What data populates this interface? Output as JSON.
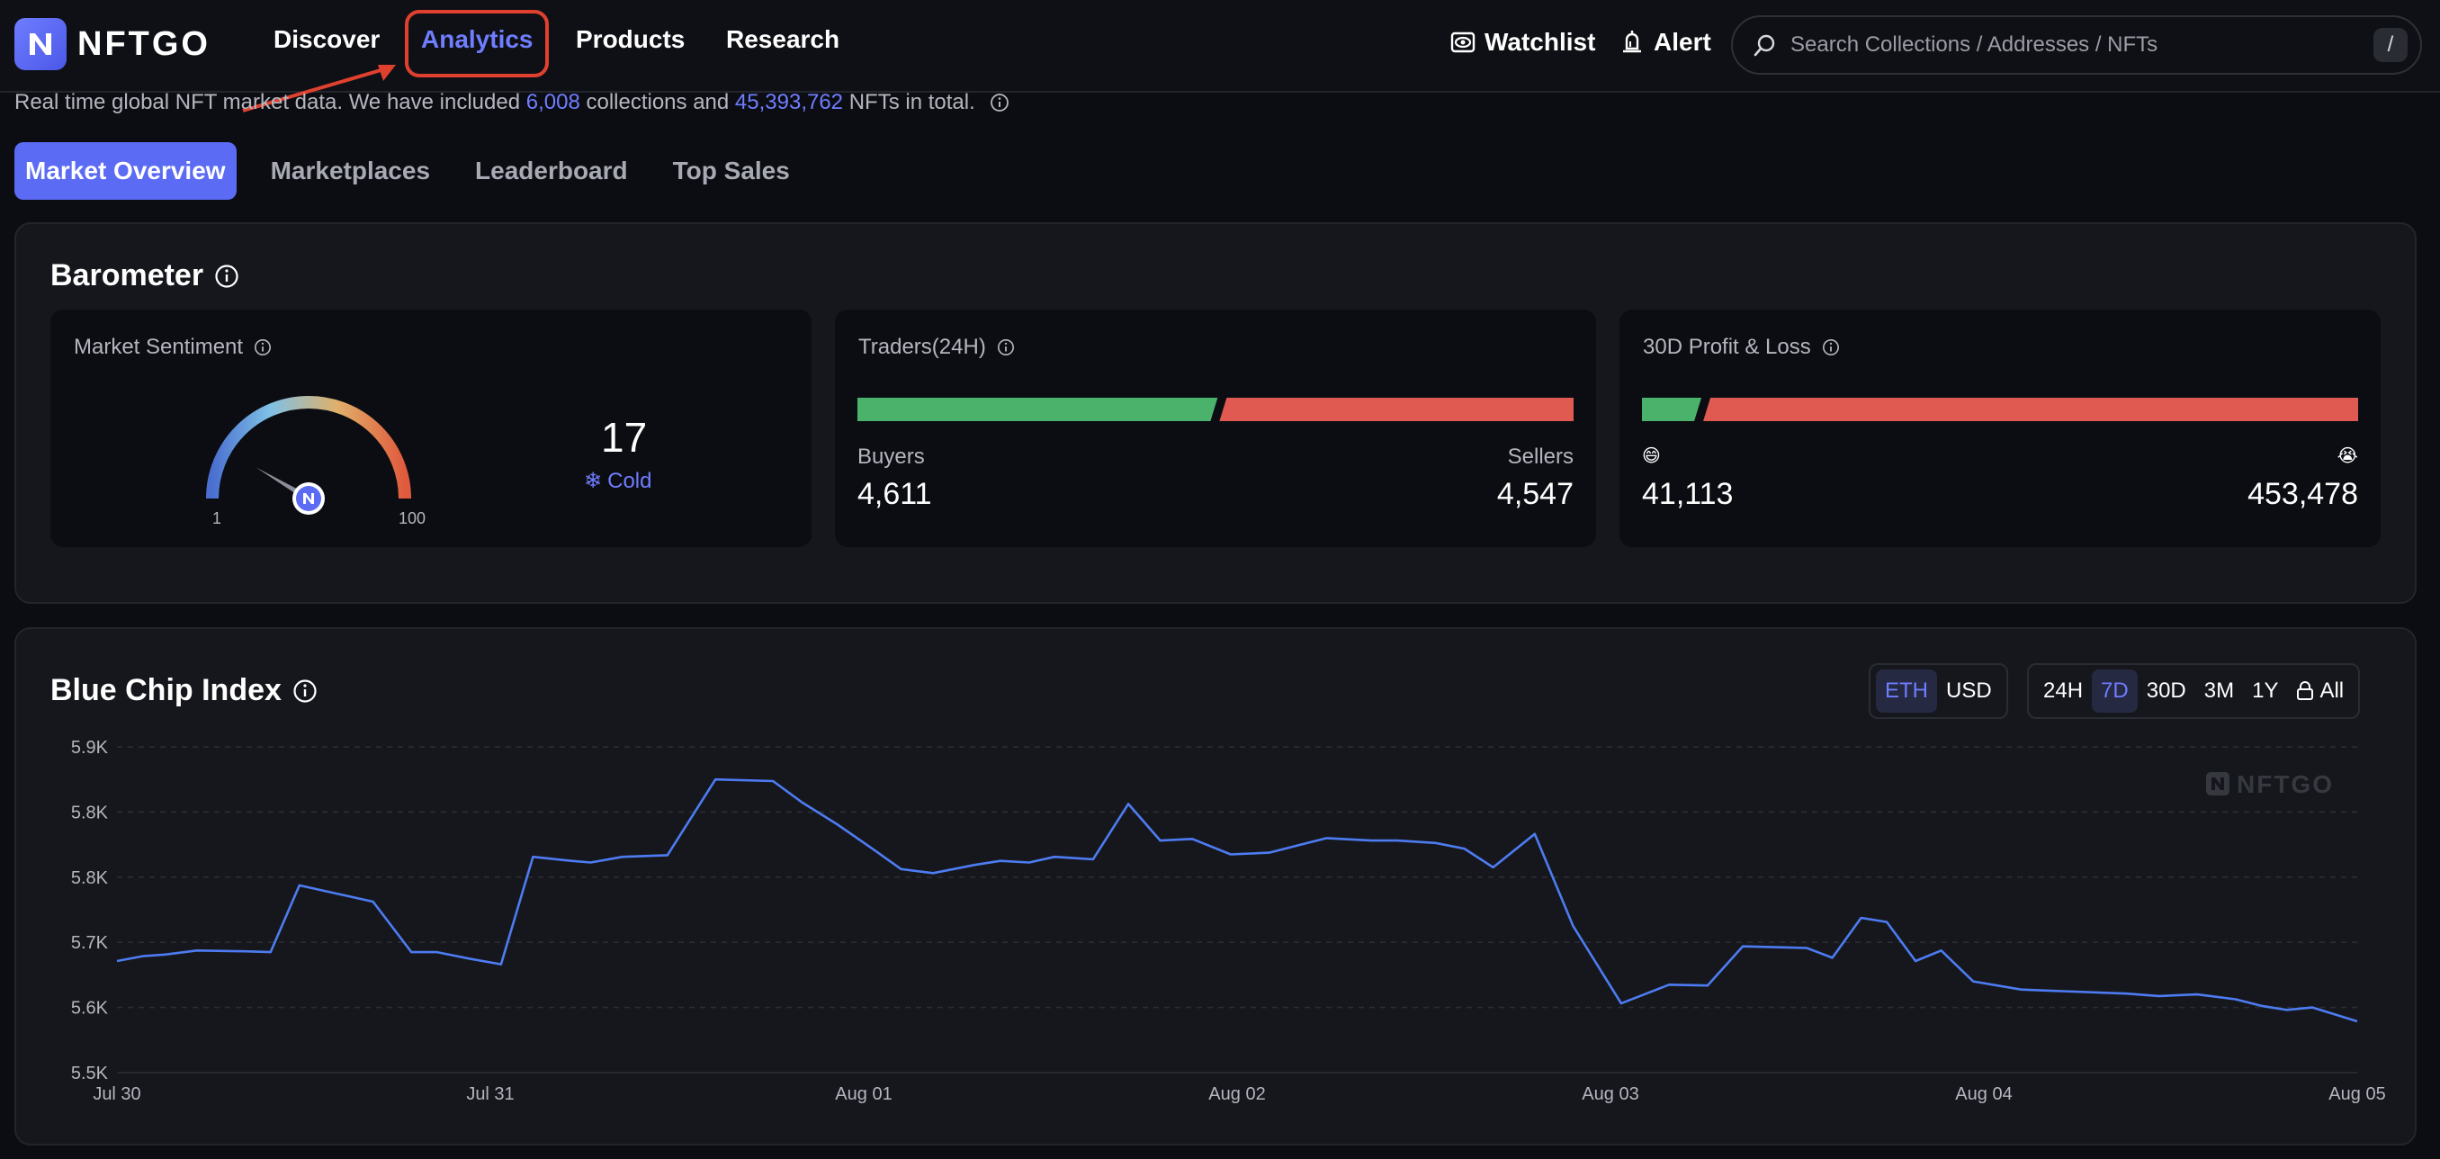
{
  "brand": {
    "name": "NFTGO"
  },
  "nav": {
    "discover": "Discover",
    "analytics": "Analytics",
    "products": "Products",
    "research": "Research",
    "watchlist": "Watchlist",
    "alert": "Alert"
  },
  "search": {
    "placeholder": "Search Collections / Addresses / NFTs",
    "shortcut": "/"
  },
  "subtitle": {
    "part1": "Real time global NFT market data. We have included",
    "collections": "6,008",
    "part2": "collections and",
    "nfts": "45,393,762",
    "part3": "NFTs in total."
  },
  "tabs": [
    "Market Overview",
    "Marketplaces",
    "Leaderboard",
    "Top Sales"
  ],
  "barometer": {
    "title": "Barometer",
    "sentiment": {
      "label": "Market Sentiment",
      "value": "17",
      "state": "Cold",
      "min": "1",
      "max": "100",
      "level": 0.17
    },
    "traders": {
      "label": "Traders(24H)",
      "buyers_label": "Buyers",
      "buyers": "4,611",
      "sellers_label": "Sellers",
      "sellers": "4,547",
      "buyers_share": 0.503
    },
    "pnl": {
      "label": "30D Profit & Loss",
      "profit": "41,113",
      "loss": "453,478",
      "profit_share": 0.083
    }
  },
  "colors": {
    "accent": "#6f7dff",
    "green": "#4bb26b",
    "red": "#e05a52",
    "line": "#4d7cf2"
  },
  "bluechip": {
    "title": "Blue Chip Index",
    "currency": [
      "ETH",
      "USD"
    ],
    "currency_active": 0,
    "ranges": [
      "24H",
      "7D",
      "30D",
      "3M",
      "1Y",
      "All"
    ],
    "range_active": 1,
    "watermark": "NFTGO"
  },
  "chart_data": {
    "type": "line",
    "title": "Blue Chip Index",
    "y_ticks": [
      "5.9K",
      "5.8K",
      "5.8K",
      "5.7K",
      "5.6K",
      "5.5K"
    ],
    "y_tick_values": [
      5900,
      5800,
      5750,
      5700,
      5600,
      5500
    ],
    "ylim": [
      5500,
      5900
    ],
    "x_ticks": [
      "Jul 30",
      "Jul 31",
      "Aug 01",
      "Aug 02",
      "Aug 03",
      "Aug 04",
      "Aug 05"
    ],
    "xlim": [
      0,
      7
    ],
    "grid": true,
    "series": [
      {
        "x": [
          0.0,
          0.08,
          0.15,
          0.25,
          0.4,
          0.48,
          0.57,
          0.8,
          0.92,
          1.0,
          1.1,
          1.2,
          1.3,
          1.42,
          1.48,
          1.58,
          1.72,
          1.87,
          2.05,
          2.14,
          2.25,
          2.36,
          2.45,
          2.55,
          2.68,
          2.76,
          2.85,
          2.93,
          3.05,
          3.16,
          3.26,
          3.36,
          3.48,
          3.6,
          3.68,
          3.78,
          3.92,
          4.0,
          4.12,
          4.21,
          4.3,
          4.43,
          4.55,
          4.7,
          4.85,
          4.97,
          5.08,
          5.18,
          5.28,
          5.36,
          5.45,
          5.53,
          5.62,
          5.7,
          5.8,
          5.95,
          6.08,
          6.28,
          6.38,
          6.5,
          6.62,
          6.7,
          6.78,
          6.86,
          7.0
        ],
        "y": [
          5637,
          5643,
          5645,
          5650,
          5649,
          5648,
          5730,
          5710,
          5648,
          5648,
          5640,
          5633,
          5765,
          5760,
          5758,
          5765,
          5767,
          5860,
          5858,
          5832,
          5805,
          5775,
          5750,
          5745,
          5755,
          5760,
          5758,
          5765,
          5762,
          5830,
          5785,
          5787,
          5768,
          5770,
          5778,
          5788,
          5785,
          5785,
          5782,
          5775,
          5752,
          5793,
          5680,
          5585,
          5608,
          5607,
          5655,
          5654,
          5653,
          5641,
          5690,
          5685,
          5637,
          5650,
          5612,
          5602,
          5600,
          5597,
          5594,
          5596,
          5590,
          5582,
          5577,
          5580,
          5563
        ]
      }
    ]
  }
}
